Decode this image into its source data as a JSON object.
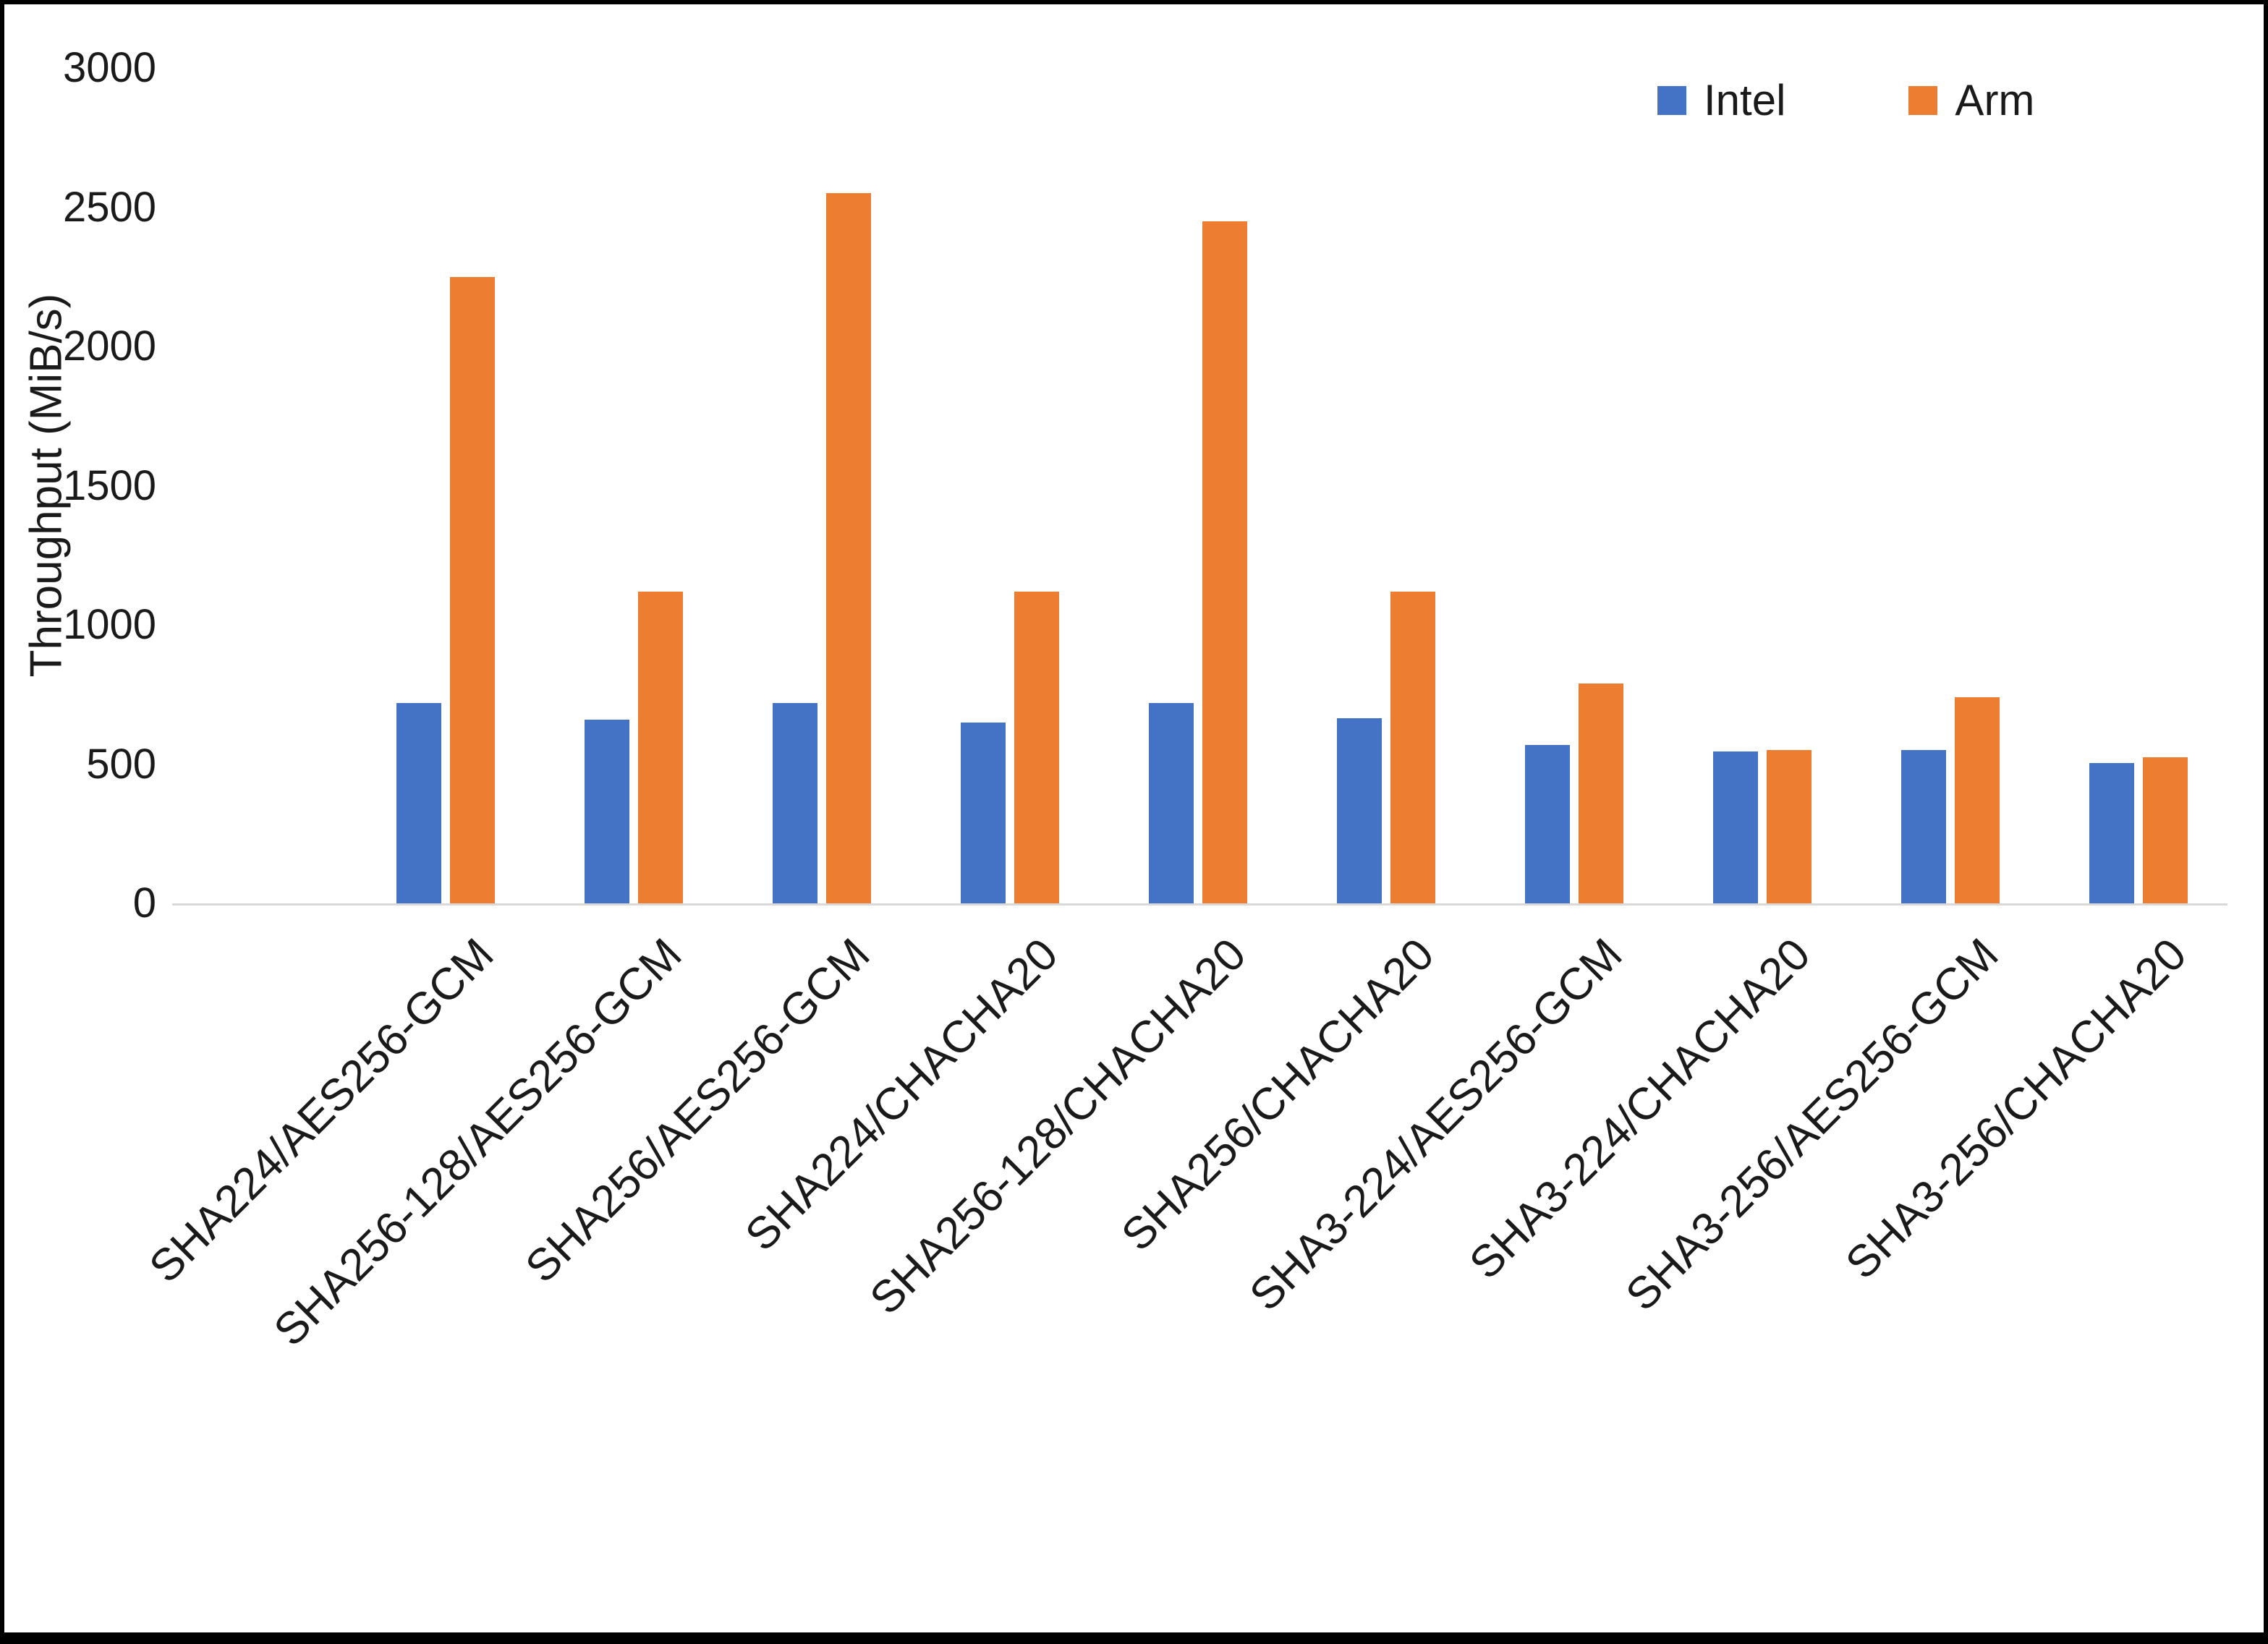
{
  "chart_data": {
    "type": "bar",
    "title": "",
    "xlabel": "",
    "ylabel": "Throughput (MiB/s)",
    "ylim": [
      0,
      3000
    ],
    "yticks": [
      0,
      500,
      1000,
      1500,
      2000,
      2500,
      3000
    ],
    "grid": false,
    "legend_position": "top-right",
    "categories": [
      "SHA224/AES256-GCM",
      "SHA256-128/AES256-GCM",
      "SHA256/AES256-GCM",
      "SHA224/CHACHA20",
      "SHA256-128/CHACHA20",
      "SHA256/CHACHA20",
      "SHA3-224/AES256-GCM",
      "SHA3-224/CHACHA20",
      "SHA3-256/AES256-GCM",
      "SHA3-256/CHACHA20"
    ],
    "series": [
      {
        "name": "Intel",
        "color": "#4472C4",
        "values": [
          720,
          660,
          720,
          650,
          720,
          665,
          570,
          545,
          550,
          505
        ]
      },
      {
        "name": "Arm",
        "color": "#ED7D31",
        "values": [
          2250,
          1120,
          2550,
          1120,
          2450,
          1120,
          790,
          550,
          740,
          525
        ]
      }
    ],
    "axis_line_color": "#D9D9D9",
    "text_color": "#1A1A1A"
  }
}
